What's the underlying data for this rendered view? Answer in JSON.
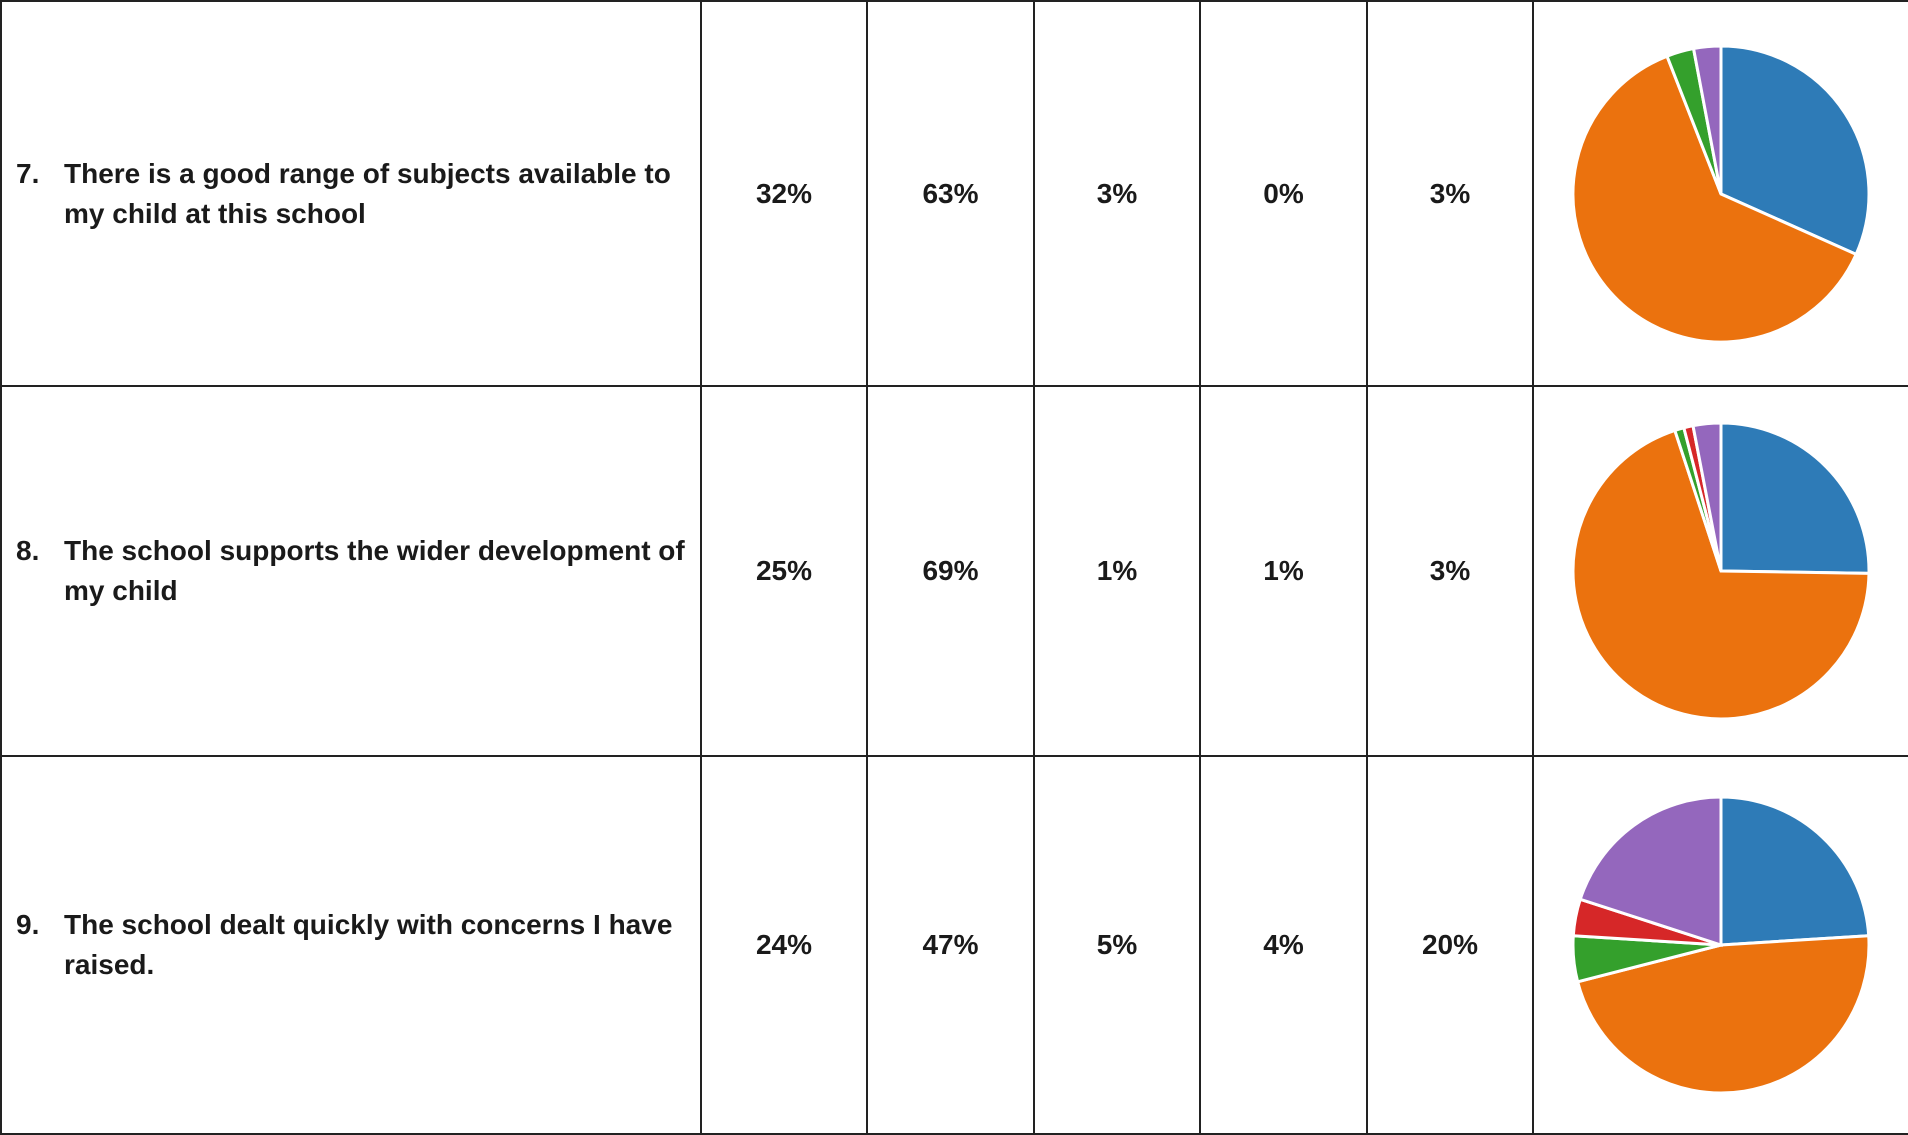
{
  "rows": [
    {
      "number": "7.",
      "question": "There is a good range of subjects available to my child at this school",
      "values": [
        "32%",
        "63%",
        "3%",
        "0%",
        "3%"
      ]
    },
    {
      "number": "8.",
      "question": "The school supports the wider development of my child",
      "values": [
        "25%",
        "69%",
        "1%",
        "1%",
        "3%"
      ]
    },
    {
      "number": "9.",
      "question": "The school dealt quickly with concerns I have raised.",
      "values": [
        "24%",
        "47%",
        "5%",
        "4%",
        "20%"
      ]
    }
  ],
  "chart_data": [
    {
      "type": "pie",
      "values": [
        32,
        63,
        3,
        0,
        3
      ],
      "colors": [
        "#2E7BB7",
        "#EB720E",
        "#34A02C",
        "#D62728",
        "#9467BD"
      ]
    },
    {
      "type": "pie",
      "values": [
        25,
        69,
        1,
        1,
        3
      ],
      "colors": [
        "#2E7BB7",
        "#EB720E",
        "#34A02C",
        "#D62728",
        "#9467BD"
      ]
    },
    {
      "type": "pie",
      "values": [
        24,
        47,
        5,
        4,
        20
      ],
      "colors": [
        "#2E7BB7",
        "#EB720E",
        "#34A02C",
        "#D62728",
        "#9467BD"
      ]
    }
  ]
}
